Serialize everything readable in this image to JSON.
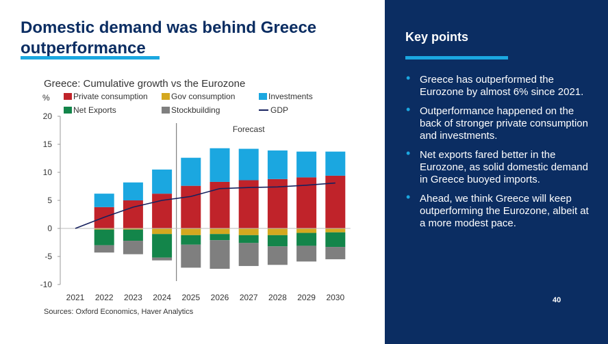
{
  "slide": {
    "title": "Domestic demand was behind Greece outperformance",
    "source": "Sources: Oxford Economics, Haver Analytics",
    "page_number": "40"
  },
  "key_points": {
    "title": "Key points",
    "items": [
      "Greece has outperformed the Eurozone by almost 6% since 2021.",
      "Outperformance happened on the back of stronger private consumption and investments.",
      "Net exports fared better in the Eurozone, as solid domestic demand in Greece buoyed imports.",
      "Ahead, we think Greece will keep outperforming the Eurozone, albeit at a more modest pace."
    ]
  },
  "colors": {
    "Private consumption": "#c0232a",
    "Gov consumption": "#d4a81f",
    "Investments": "#1ba7e0",
    "Net Exports": "#13854a",
    "Stockbuilding": "#7f7f7f",
    "GDP": "#16215e",
    "navy": "#0b2d62"
  },
  "chart_data": {
    "type": "bar",
    "title": "Greece: Cumulative growth vs the Eurozone",
    "ylabel": "%",
    "annotation": "Forecast",
    "ylim": [
      -10,
      20
    ],
    "yticks": [
      20,
      15,
      10,
      5,
      0,
      -5,
      -10
    ],
    "categories": [
      "2021",
      "2022",
      "2023",
      "2024",
      "2025",
      "2026",
      "2027",
      "2028",
      "2029",
      "2030"
    ],
    "forecast_start": "2025",
    "stacked": true,
    "series": [
      {
        "name": "Private consumption",
        "type": "bar",
        "values": [
          0,
          3.8,
          5.0,
          6.2,
          7.6,
          8.3,
          8.6,
          8.8,
          9.1,
          9.4
        ]
      },
      {
        "name": "Gov consumption",
        "type": "bar",
        "values": [
          0,
          -0.2,
          -0.2,
          -1.0,
          -1.2,
          -1.0,
          -1.2,
          -1.2,
          -0.8,
          -0.7
        ]
      },
      {
        "name": "Investments",
        "type": "bar",
        "values": [
          0,
          2.4,
          3.2,
          4.3,
          5.0,
          6.0,
          5.6,
          5.1,
          4.6,
          4.3
        ]
      },
      {
        "name": "Net Exports",
        "type": "bar",
        "values": [
          0,
          -2.8,
          -2.0,
          -4.2,
          -1.7,
          -1.1,
          -1.4,
          -2.0,
          -2.3,
          -2.6
        ]
      },
      {
        "name": "Stockbuilding",
        "type": "bar",
        "values": [
          0,
          -1.3,
          -2.4,
          -0.5,
          -4.1,
          -5.1,
          -4.1,
          -3.3,
          -2.8,
          -2.2
        ]
      },
      {
        "name": "GDP",
        "type": "line",
        "values": [
          0,
          2.0,
          3.8,
          5.0,
          5.7,
          7.1,
          7.3,
          7.4,
          7.7,
          8.1
        ]
      }
    ],
    "legend": [
      "Private consumption",
      "Gov consumption",
      "Investments",
      "Net Exports",
      "Stockbuilding",
      "GDP"
    ],
    "grid": false
  }
}
